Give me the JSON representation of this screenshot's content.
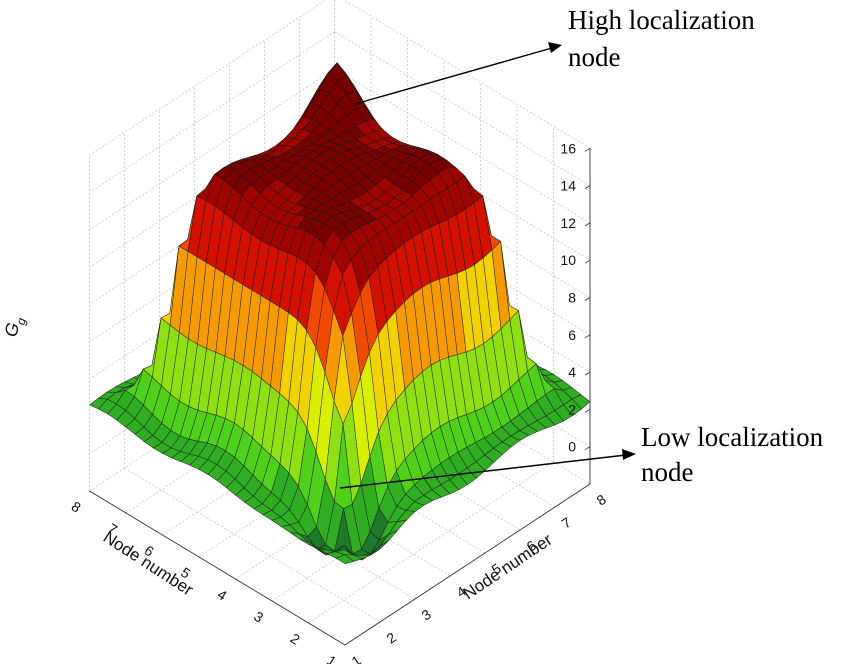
{
  "chart_data": {
    "type": "surface3d",
    "title": "",
    "xlabel": "Node number",
    "ylabel": "Node number",
    "zlabel_main": "G",
    "zlabel_sub": "g",
    "x_ticks": [
      "1",
      "2",
      "3",
      "4",
      "5",
      "6",
      "7",
      "8"
    ],
    "y_ticks": [
      "1",
      "2",
      "3",
      "4",
      "5",
      "6",
      "7",
      "8"
    ],
    "z_ticks": [
      "0",
      "2",
      "4",
      "6",
      "8",
      "10",
      "12",
      "14",
      "16"
    ],
    "zlim": [
      -2,
      16
    ],
    "grid": true,
    "surface_shape": "high plateau in the centre (about 14-16) with low flat skirt (about 2-3) around the edges; lowest dip near the front corner",
    "colormap": [
      "#0c4a2f",
      "#1e7a2a",
      "#2fae22",
      "#4fd01a",
      "#8fe010",
      "#d8f000",
      "#f2d200",
      "#f59a00",
      "#f04a00",
      "#d41000",
      "#a00400",
      "#7a0000"
    ],
    "annotations": [
      {
        "lines": [
          "High localization",
          "node"
        ]
      },
      {
        "lines": [
          "Low localization",
          "node"
        ]
      }
    ]
  }
}
